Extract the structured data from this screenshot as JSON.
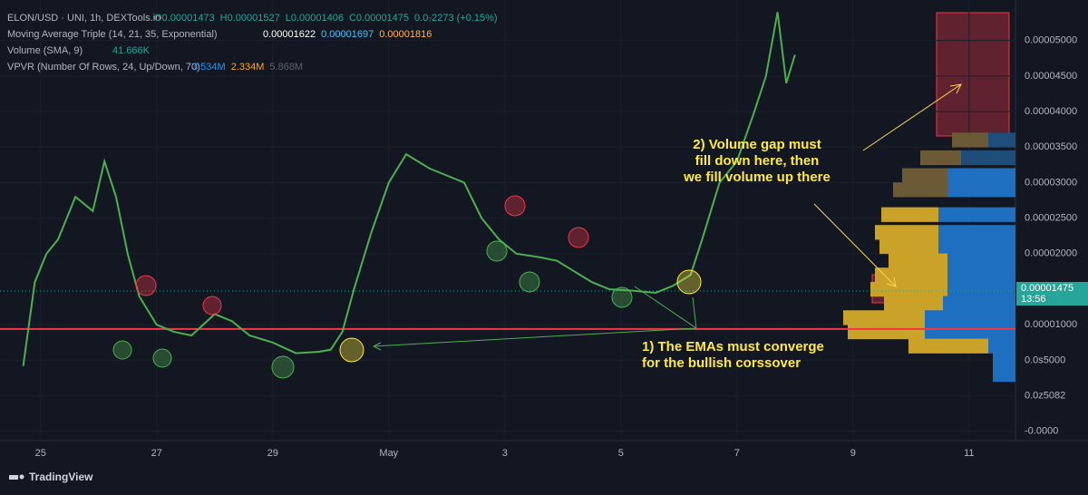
{
  "chart_data": {
    "type": "line",
    "legend": {
      "symbol": "ELON/USD · UNI, 1h, DEXTools.io",
      "ohlc": [
        "O0.00001473",
        "H0.00001527",
        "L0.00001406",
        "C0.00001475",
        "0.0₇2273 (+0.15%)"
      ],
      "ma_title": "Moving Average Triple (14, 21, 35, Exponential)",
      "ma_values": [
        "0.00001622",
        "0.00001697",
        "0.00001816"
      ],
      "volume_title": "Volume (SMA, 9)",
      "volume_value": "41.666K",
      "vpvr_title": "VPVR (Number Of Rows, 24, Up/Down, 70)",
      "vpvr_values": [
        "3.534M",
        "2.334M",
        "5.868M"
      ]
    },
    "x": [
      -0.3,
      -0.1,
      0.1,
      0.3,
      0.6,
      0.9,
      1.1,
      1.3,
      1.5,
      1.7,
      2.0,
      2.3,
      2.6,
      3.0,
      3.3,
      3.6,
      4.0,
      4.4,
      4.8,
      5.0,
      5.2,
      5.4,
      5.7,
      6.0,
      6.3,
      6.7,
      7.0,
      7.3,
      7.6,
      7.9,
      8.2,
      8.6,
      8.9,
      9.2,
      9.5,
      9.8,
      10.2,
      10.6,
      10.9,
      11.2,
      11.4,
      11.7,
      12.0,
      12.3,
      12.5,
      12.7,
      12.85,
      13.0
    ],
    "series": [
      {
        "name": "ELON/USD",
        "color": "#4caf50",
        "values": [
          4.2e-06,
          1.6e-05,
          2e-05,
          2.2e-05,
          2.8e-05,
          2.6e-05,
          3.3e-05,
          2.8e-05,
          2e-05,
          1.4e-05,
          1e-05,
          9e-06,
          8.5e-06,
          1.15e-05,
          1.05e-05,
          8.5e-06,
          7.5e-06,
          6e-06,
          6.2e-06,
          6.5e-06,
          9e-06,
          1.5e-05,
          2.3e-05,
          3e-05,
          3.4e-05,
          3.2e-05,
          3.1e-05,
          3e-05,
          2.5e-05,
          2.2e-05,
          2e-05,
          1.95e-05,
          1.9e-05,
          1.75e-05,
          1.6e-05,
          1.5e-05,
          1.48e-05,
          1.45e-05,
          1.55e-05,
          1.7e-05,
          2.2e-05,
          3e-05,
          3.3e-05,
          4e-05,
          4.5e-05,
          5.4e-05,
          4.4e-05,
          4.8e-05
        ]
      }
    ],
    "xlim": [
      -0.7,
      16.8
    ],
    "xticks": [
      {
        "value": 0,
        "label": "25"
      },
      {
        "value": 2,
        "label": "27"
      },
      {
        "value": 4,
        "label": "29"
      },
      {
        "value": 6,
        "label": "May"
      },
      {
        "value": 8,
        "label": "3"
      },
      {
        "value": 10,
        "label": "5"
      },
      {
        "value": 12,
        "label": "7"
      },
      {
        "value": 14,
        "label": "9"
      },
      {
        "value": 16,
        "label": "11"
      }
    ],
    "ylim": [
      -6.3e-06,
      5.57e-05
    ],
    "yticks": [
      {
        "value": 5e-05,
        "label": "0.00005000"
      },
      {
        "value": 4.5e-05,
        "label": "0.00004500"
      },
      {
        "value": 4e-05,
        "label": "0.00004000"
      },
      {
        "value": 3.5e-05,
        "label": "0.00003500"
      },
      {
        "value": 3e-05,
        "label": "0.00003000"
      },
      {
        "value": 2.5e-05,
        "label": "0.00002500"
      },
      {
        "value": 2e-05,
        "label": "0.00002000"
      },
      {
        "value": 1e-05,
        "label": "0.00001000"
      },
      {
        "value": 5e-06,
        "label": "0.0s5000"
      },
      {
        "value": 0,
        "label": "0.0z5082"
      },
      {
        "value": -5e-06,
        "label": "-0.0000"
      }
    ],
    "last_price": {
      "value": 1.475e-05,
      "label": "0.00001475",
      "countdown": "13:56"
    },
    "support_line": 9.4e-06,
    "vpvr": [
      {
        "price": 3.6e-05,
        "up": 0.3,
        "down": 0.4
      },
      {
        "price": 3.35e-05,
        "up": 0.6,
        "down": 0.45
      },
      {
        "price": 3.1e-05,
        "up": 0.75,
        "down": 0.5
      },
      {
        "price": 2.9e-05,
        "up": 0.75,
        "down": 0.6
      },
      {
        "price": 2.55e-05,
        "up": 0.85,
        "down": 0.63
      },
      {
        "price": 2.3e-05,
        "up": 0.85,
        "down": 0.7
      },
      {
        "price": 2.1e-05,
        "up": 0.85,
        "down": 0.65
      },
      {
        "price": 1.9e-05,
        "up": 0.75,
        "down": 0.65
      },
      {
        "price": 1.7e-05,
        "up": 0.75,
        "down": 0.8
      },
      {
        "price": 1.5e-05,
        "up": 0.75,
        "down": 0.85
      },
      {
        "price": 1.3e-05,
        "up": 0.8,
        "down": 0.65
      },
      {
        "price": 1.1e-05,
        "up": 1.0,
        "down": 0.9
      },
      {
        "price": 9e-06,
        "up": 1.0,
        "down": 0.85
      },
      {
        "price": 7e-06,
        "up": 0.3,
        "down": 0.88
      },
      {
        "price": 5e-06,
        "up": 0.25,
        "down": 0
      },
      {
        "price": 3e-06,
        "up": 0.25,
        "down": 0
      }
    ],
    "annotations": [
      [
        "2) Volume gap must",
        " fill down here, then",
        " we fill volume  up there"
      ],
      [
        "1) The EMAs must converge",
        "for the bullish corssover"
      ]
    ],
    "footer": "TradingView"
  }
}
